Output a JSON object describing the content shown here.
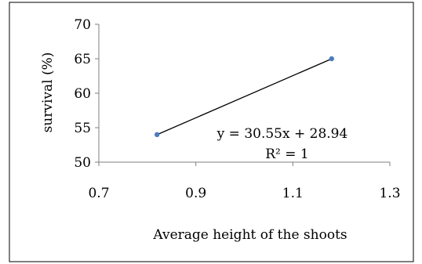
{
  "chart_data": {
    "type": "scatter",
    "title": "",
    "xlabel": "Average height of the shoots",
    "ylabel": "survival (%)",
    "xlim": [
      0.7,
      1.3
    ],
    "ylim": [
      50,
      70
    ],
    "xticks": [
      0.7,
      0.9,
      1.1,
      1.3
    ],
    "xtick_labels": [
      "0.7",
      "0.9",
      "1.1",
      "1.3"
    ],
    "yticks": [
      50,
      55,
      60,
      65,
      70
    ],
    "ytick_labels": [
      "50",
      "55",
      "60",
      "65",
      "70"
    ],
    "grid": false,
    "legend": "none",
    "series": [
      {
        "x": [
          0.82,
          1.18
        ],
        "y": [
          54,
          65
        ]
      }
    ],
    "trendline": {
      "type": "linear",
      "slope": 30.55,
      "intercept": 28.94,
      "equation": "y = 30.55x + 28.94",
      "r_squared": "R² = 1"
    },
    "colors": {
      "marker": "#4a7ebb",
      "line": "#000000",
      "axis": "#7f7f7f",
      "border": "#000000"
    }
  }
}
